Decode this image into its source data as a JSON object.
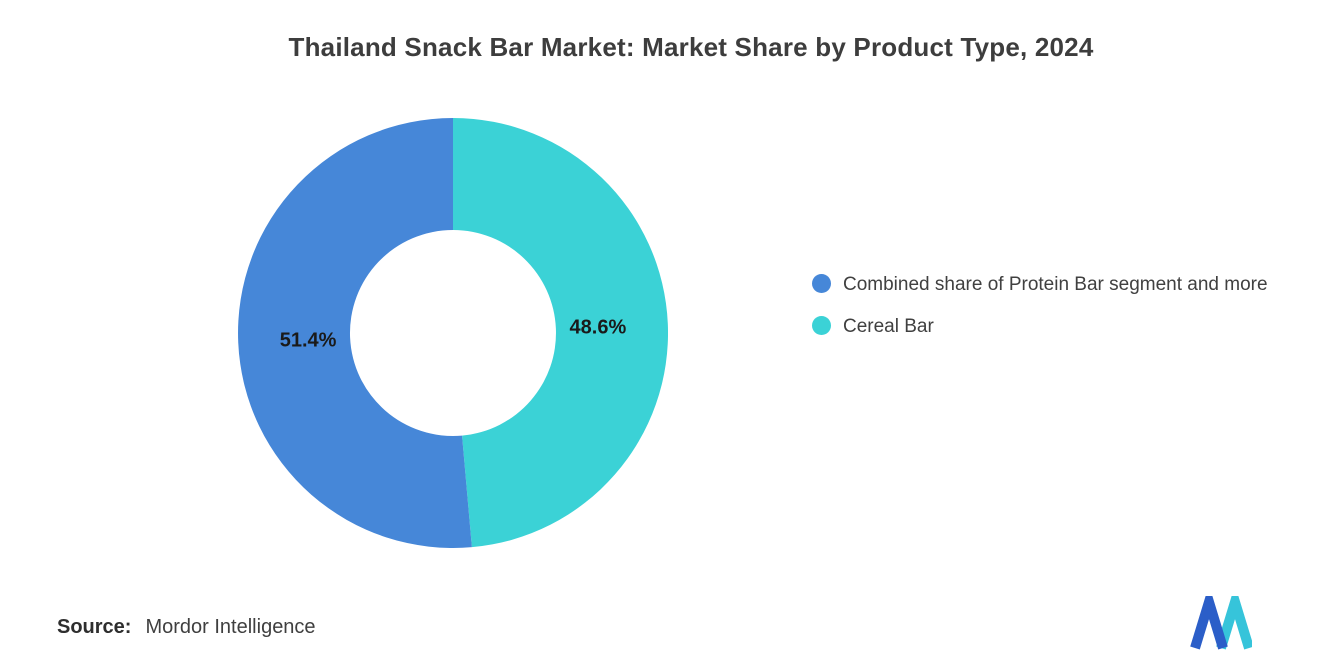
{
  "title": "Thailand Snack Bar Market: Market Share by Product Type, 2024",
  "source": {
    "label": "Source:",
    "value": "Mordor Intelligence"
  },
  "logo": {
    "name": "mordor-intelligence-logo",
    "blue": "#2B5EC8",
    "teal": "#36C4DA"
  },
  "chart_data": {
    "type": "pie",
    "subtype": "donut",
    "title": "Thailand Snack Bar Market: Market Share by Product Type, 2024",
    "legend_position": "right",
    "inner_radius_ratio": 0.48,
    "start_angle_deg": 0,
    "direction": "teal segment clockwise from top, blue segment on left",
    "segments": [
      {
        "label": "Combined share of Protein Bar segment and more",
        "value": 51.4,
        "display": "51.4%",
        "color": "#4687D8"
      },
      {
        "label": "Cereal Bar",
        "value": 48.6,
        "display": "48.6%",
        "color": "#3BD2D6"
      }
    ]
  }
}
